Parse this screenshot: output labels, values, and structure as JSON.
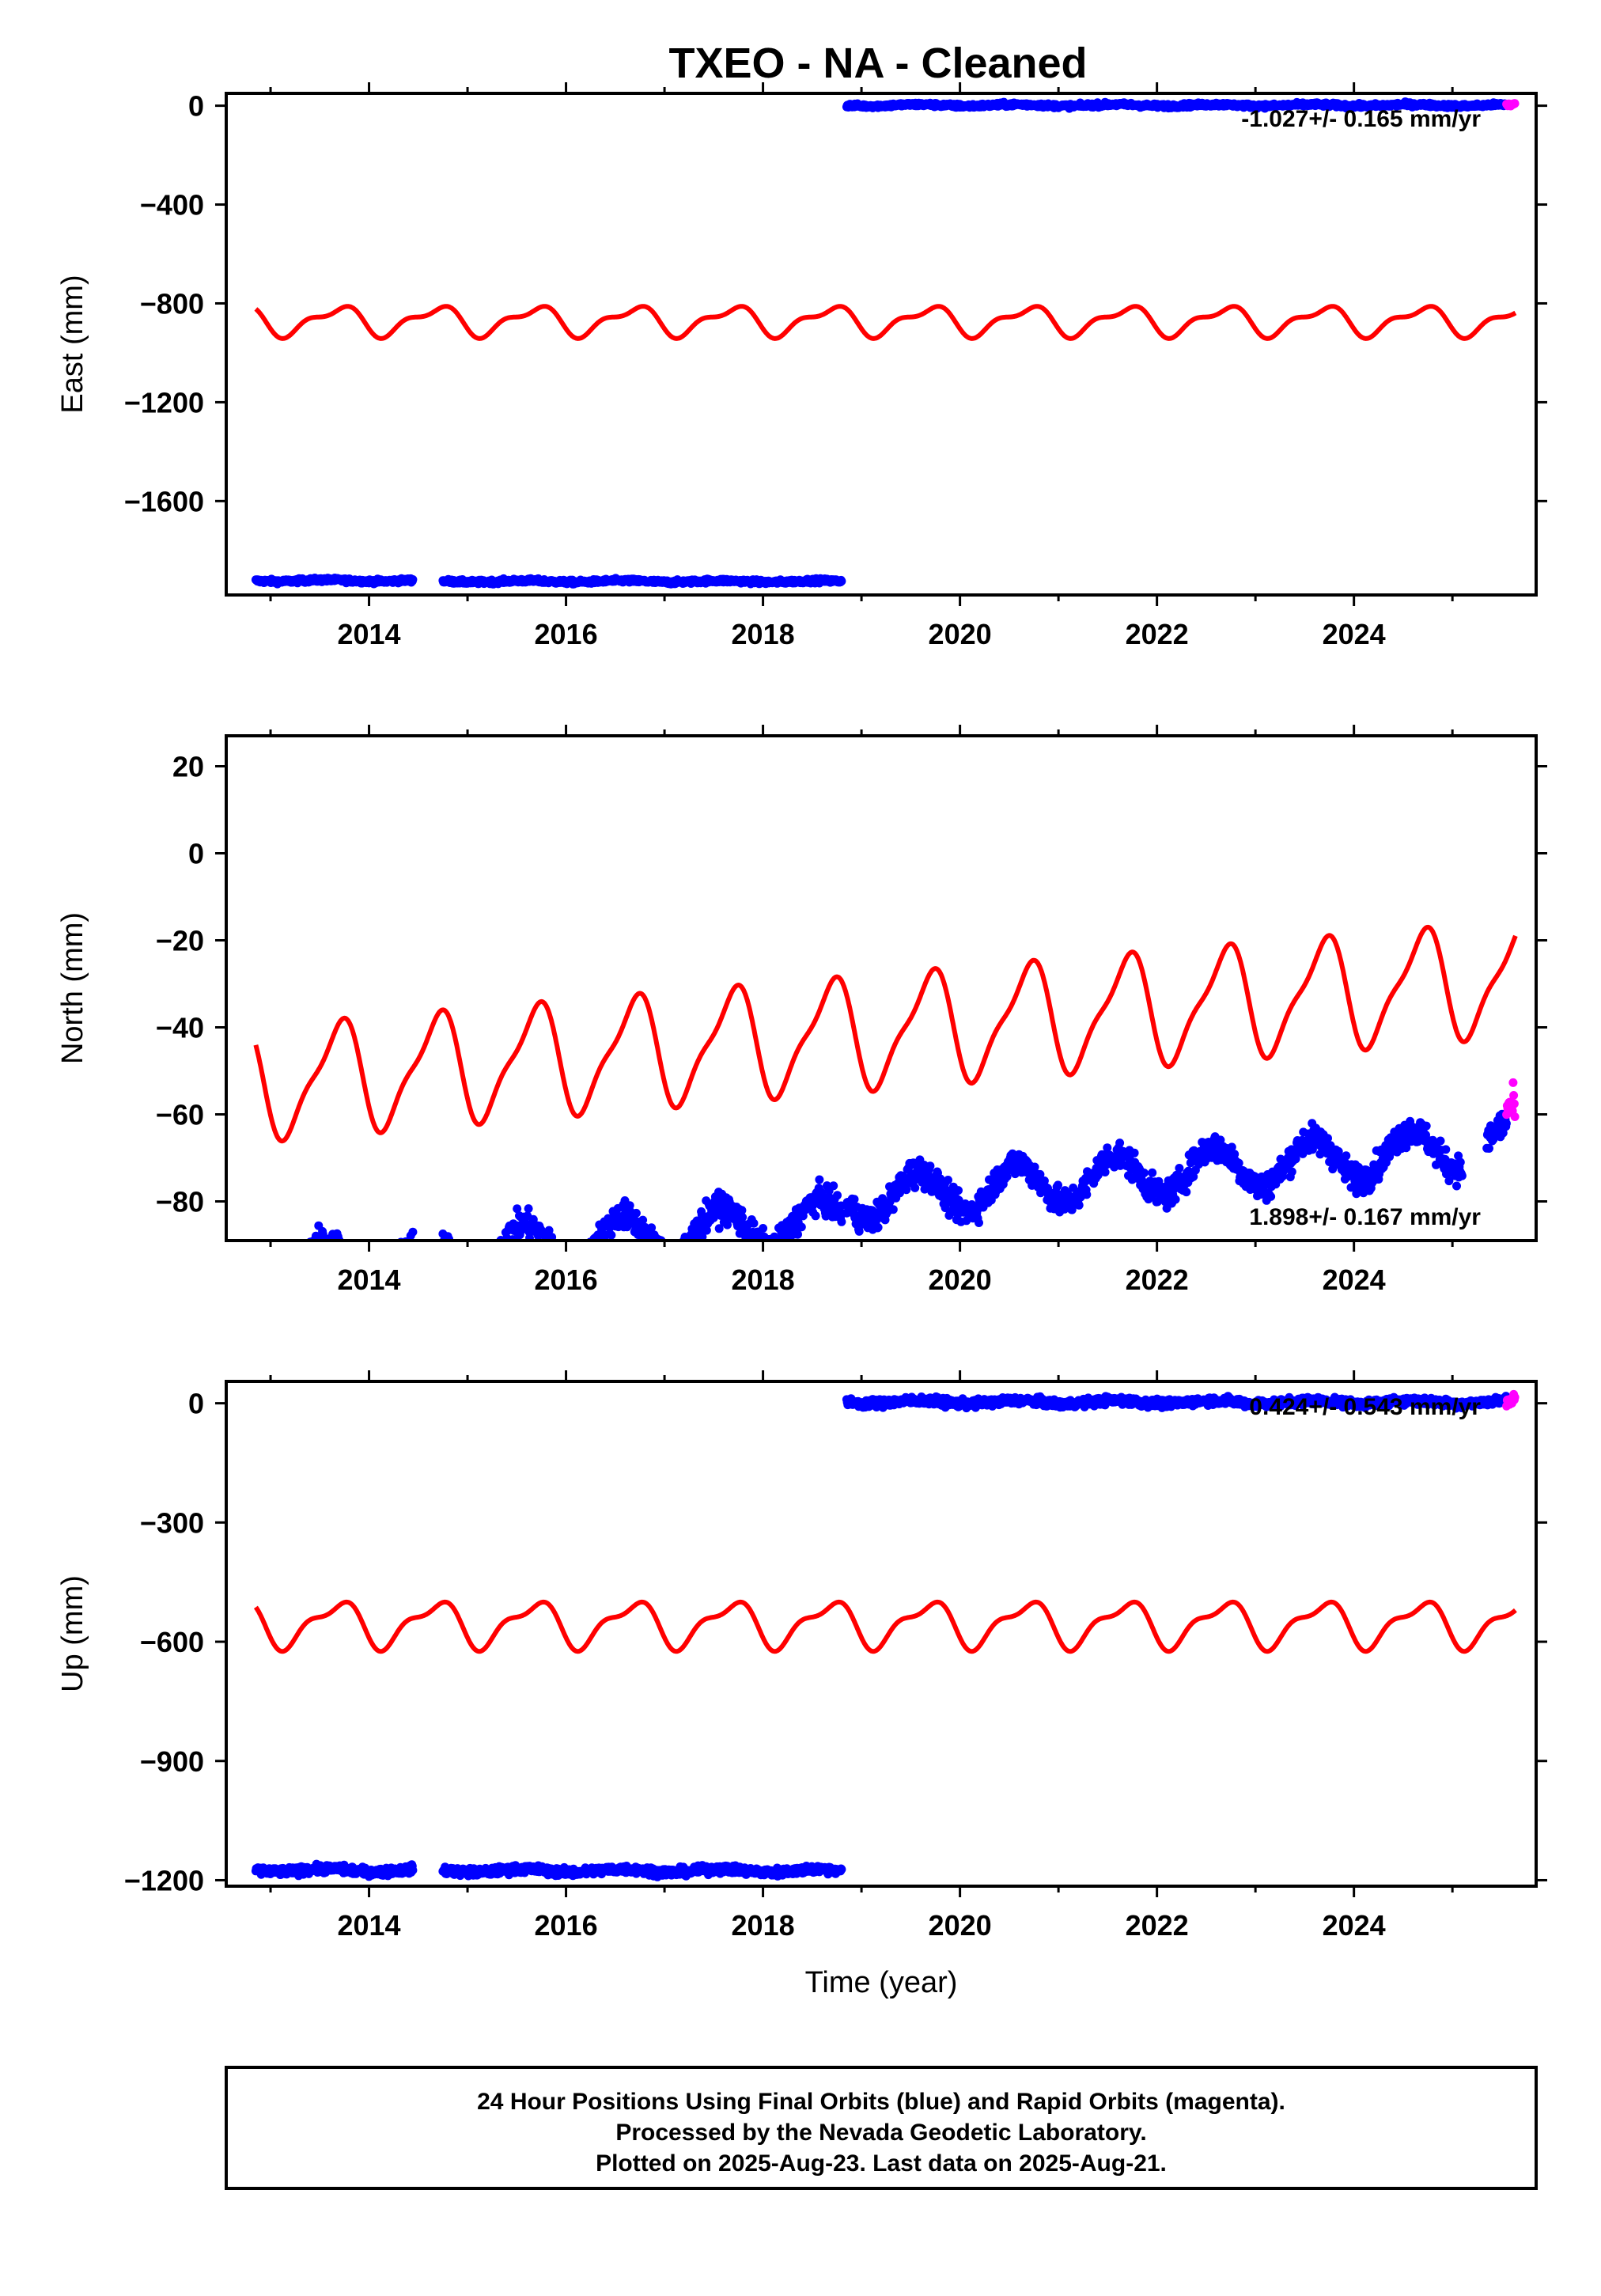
{
  "title": "TXEO  - NA - Cleaned",
  "colors": {
    "final": "#0000ff",
    "rapid": "#ff00ff",
    "model": "#ff0000",
    "axis": "#000000"
  },
  "chart_data": [
    {
      "type": "scatter",
      "component": "east",
      "ylabel": "East (mm)",
      "xlabel": "",
      "xlim": [
        2012.55,
        2025.85
      ],
      "ylim": [
        -1980,
        50
      ],
      "yticks": [
        0,
        -400,
        -800,
        -1200,
        -1600
      ],
      "ytick_labels": [
        "0",
        "−400",
        "−800",
        "−1200",
        "−1600"
      ],
      "xticks": [
        2014,
        2016,
        2018,
        2020,
        2022,
        2024
      ],
      "xtick_labels": [
        "2014",
        "2016",
        "2018",
        "2020",
        "2022",
        "2024"
      ],
      "rate_label": "-1.027+/- 0.165 mm/yr",
      "rate_position": "top-right",
      "final_segments": [
        {
          "start": 2012.85,
          "end": 2014.45,
          "base": -1922,
          "amp": 3,
          "noise": 4
        },
        {
          "start": 2014.75,
          "end": 2018.8,
          "base": -1925,
          "amp": 3,
          "noise": 4
        },
        {
          "start": 2018.85,
          "end": 2025.55,
          "base": 2,
          "amp": 3,
          "noise": 4
        }
      ],
      "rapid_segments": [
        {
          "start": 2025.55,
          "end": 2025.64,
          "base": 5,
          "amp": 0,
          "noise": 4
        }
      ],
      "model": {
        "start": 2012.85,
        "end": 2025.64,
        "base": -870,
        "trend": 0,
        "annual": [
          -24,
          -47
        ],
        "semiannual": [
          -9,
          -22
        ]
      }
    },
    {
      "type": "scatter",
      "component": "north",
      "ylabel": "North (mm)",
      "xlabel": "",
      "xlim": [
        2012.55,
        2025.85
      ],
      "ylim": [
        -89,
        27
      ],
      "yticks": [
        20,
        0,
        -20,
        -40,
        -60,
        -80
      ],
      "ytick_labels": [
        "20",
        "0",
        "−20",
        "−40",
        "−60",
        "−80"
      ],
      "xticks": [
        2014,
        2016,
        2018,
        2020,
        2022,
        2024
      ],
      "xtick_labels": [
        "2014",
        "2016",
        "2018",
        "2020",
        "2022",
        "2024"
      ],
      "rate_label": "1.898+/- 0.167 mm/yr",
      "rate_position": "bottom-right",
      "final_segments": [
        {
          "start": 2012.85,
          "end": 2014.45,
          "base": -83.7,
          "trend": 1.9,
          "amp": 5,
          "noise": 1.6
        },
        {
          "start": 2014.75,
          "end": 2018.8,
          "base": -83.7,
          "trend": 1.9,
          "amp": 5,
          "noise": 1.6
        },
        {
          "start": 2018.85,
          "end": 2025.1,
          "base": -79.3,
          "trend": 1.9,
          "amp": 5,
          "noise": 1.6
        },
        {
          "start": 2025.35,
          "end": 2025.55,
          "base": -79.3,
          "trend": 1.9,
          "amp": 5,
          "noise": 1.6
        }
      ],
      "rapid_segments": [
        {
          "start": 2025.55,
          "end": 2025.64,
          "base": -76,
          "trend": 1.9,
          "amp": 5,
          "noise": 2.2
        }
      ],
      "model": {
        "start": 2012.85,
        "end": 2025.64,
        "base": -41.3,
        "trend": 1.9,
        "annual": [
          -5,
          -10.9
        ],
        "semiannual": [
          -2.5,
          -2.4
        ]
      }
    },
    {
      "type": "scatter",
      "component": "up",
      "ylabel": "Up (mm)",
      "xlabel": "Time (year)",
      "xlim": [
        2012.55,
        2025.85
      ],
      "ylim": [
        -1215,
        55
      ],
      "yticks": [
        0,
        -300,
        -600,
        -900,
        -1200
      ],
      "ytick_labels": [
        "0",
        "−300",
        "−600",
        "−900",
        "−1200"
      ],
      "xticks": [
        2014,
        2016,
        2018,
        2020,
        2022,
        2024
      ],
      "xtick_labels": [
        "2014",
        "2016",
        "2018",
        "2020",
        "2022",
        "2024"
      ],
      "rate_label": "0.424+/- 0.543 mm/yr",
      "rate_position": "top-right",
      "final_segments": [
        {
          "start": 2012.85,
          "end": 2014.45,
          "base": -1175,
          "amp": 4,
          "noise": 5
        },
        {
          "start": 2014.75,
          "end": 2018.8,
          "base": -1176,
          "amp": 4,
          "noise": 5
        },
        {
          "start": 2018.85,
          "end": 2025.55,
          "base": 3,
          "amp": 4,
          "noise": 5
        }
      ],
      "rapid_segments": [
        {
          "start": 2025.55,
          "end": 2025.64,
          "base": 8,
          "amp": 0,
          "noise": 6
        }
      ],
      "model": {
        "start": 2012.85,
        "end": 2025.64,
        "base": -555,
        "trend": 0,
        "annual": [
          -26,
          -45
        ],
        "semiannual": [
          -9,
          -19
        ]
      }
    }
  ],
  "footer": {
    "line1": "24 Hour Positions Using Final Orbits (blue) and Rapid Orbits (magenta).",
    "line2": "Processed by the Nevada Geodetic Laboratory.",
    "line3": "Plotted on 2025-Aug-23. Last data on 2025-Aug-21."
  }
}
